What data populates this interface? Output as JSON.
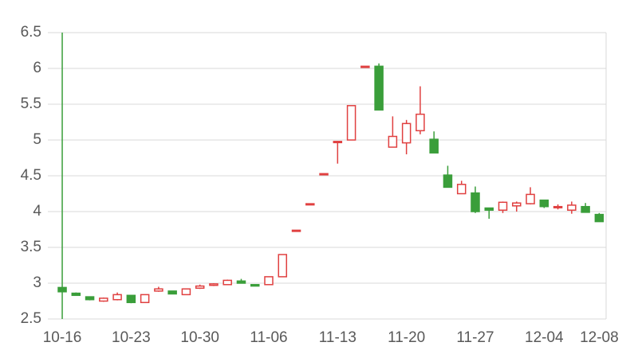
{
  "chart_data": {
    "type": "candlestick",
    "categories": [
      "10-16",
      null,
      null,
      null,
      null,
      "10-23",
      null,
      null,
      null,
      null,
      "10-30",
      null,
      null,
      null,
      null,
      "11-06",
      null,
      null,
      null,
      null,
      "11-13",
      null,
      null,
      null,
      null,
      "11-20",
      null,
      null,
      null,
      null,
      "11-27",
      null,
      null,
      null,
      null,
      "12-04",
      null,
      null,
      null,
      "12-08"
    ],
    "open": [
      2.94,
      2.86,
      2.81,
      2.75,
      2.77,
      2.83,
      2.73,
      2.89,
      2.89,
      2.84,
      2.93,
      2.97,
      2.98,
      3.03,
      2.98,
      2.98,
      3.09,
      3.74,
      4.11,
      4.53,
      4.98,
      5.0,
      6.03,
      6.03,
      4.9,
      4.96,
      5.13,
      5.01,
      4.51,
      4.25,
      4.26,
      4.05,
      4.02,
      4.08,
      4.11,
      4.16,
      4.06,
      4.02,
      4.07,
      3.96
    ],
    "high": [
      6.5,
      2.87,
      2.81,
      2.8,
      2.87,
      2.83,
      2.84,
      2.95,
      2.89,
      2.92,
      2.98,
      3.0,
      3.05,
      3.06,
      2.98,
      3.09,
      3.4,
      3.74,
      4.11,
      4.53,
      4.98,
      5.48,
      6.03,
      6.07,
      5.33,
      5.28,
      5.75,
      5.12,
      4.64,
      4.43,
      4.35,
      4.05,
      4.14,
      4.14,
      4.34,
      4.16,
      4.1,
      4.14,
      4.12,
      3.98
    ],
    "low": [
      2.5,
      2.83,
      2.76,
      2.74,
      2.76,
      2.72,
      2.73,
      2.88,
      2.85,
      2.84,
      2.92,
      2.96,
      2.98,
      3.0,
      2.96,
      2.98,
      3.09,
      3.74,
      4.11,
      4.53,
      4.67,
      5.0,
      6.03,
      5.42,
      4.9,
      4.8,
      5.08,
      4.82,
      4.34,
      4.25,
      3.98,
      3.9,
      3.98,
      4.0,
      4.1,
      4.05,
      4.03,
      3.97,
      3.99,
      3.86
    ],
    "close": [
      2.88,
      2.83,
      2.77,
      2.79,
      2.84,
      2.73,
      2.84,
      2.92,
      2.85,
      2.92,
      2.96,
      2.99,
      3.04,
      3.0,
      2.96,
      3.09,
      3.4,
      3.74,
      4.11,
      4.53,
      4.98,
      5.48,
      6.03,
      5.42,
      5.05,
      5.23,
      5.36,
      4.82,
      4.34,
      4.38,
      4.0,
      4.02,
      4.13,
      4.12,
      4.24,
      4.07,
      4.07,
      4.09,
      3.99,
      3.86
    ],
    "up_color": "#e04040",
    "down_color": "#3a9e3a",
    "ylim": [
      2.5,
      6.5
    ],
    "yticks": [
      2.5,
      3,
      3.5,
      4,
      4.5,
      5,
      5.5,
      6,
      6.5
    ],
    "grid": true
  }
}
